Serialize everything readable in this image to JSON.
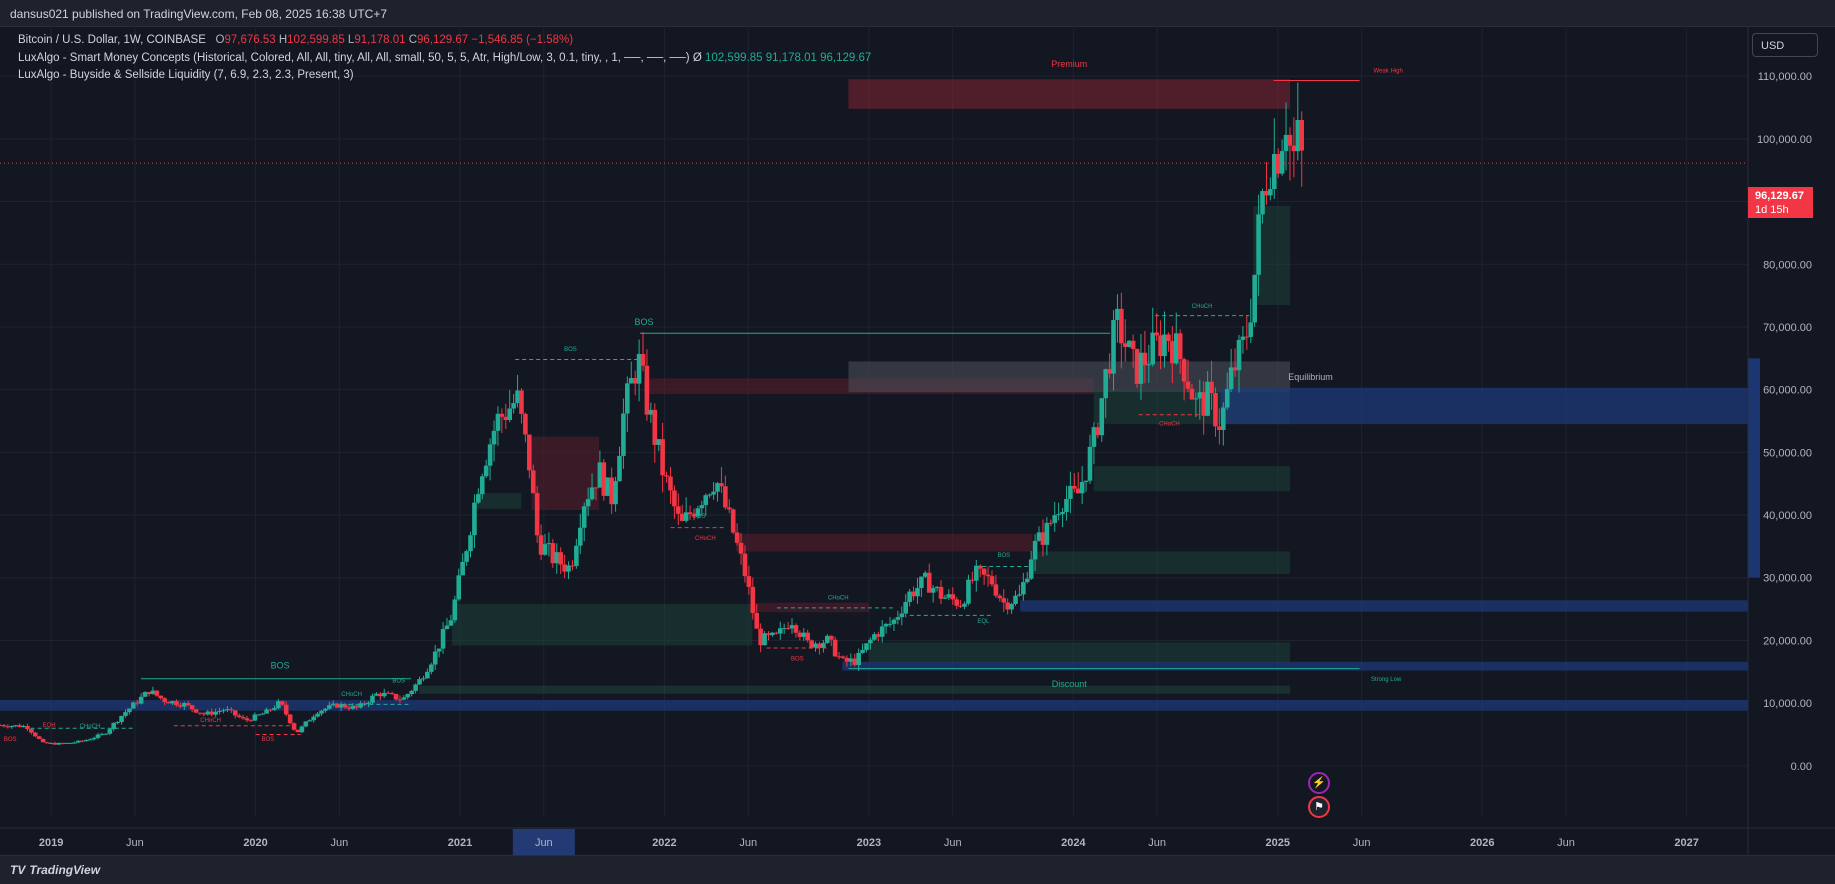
{
  "header": {
    "published_text": "dansus021 published on TradingView.com, Feb 08, 2025 16:38 UTC+7"
  },
  "legend": {
    "symbol": "Bitcoin / U.S. Dollar, 1W, COINBASE",
    "o_label": "O",
    "o_value": "97,676.53",
    "h_label": "H",
    "h_value": "102,599.85",
    "l_label": "L",
    "l_value": "91,178.01",
    "c_label": "C",
    "c_value": "96,129.67",
    "change": "−1,546.85 (−1.58%)",
    "indicator1": "LuxAlgo - Smart Money Concepts (Historical, Colored, All, All, tiny, All, All, small, 50, 5, 5, Atr, High/Low, 3, 0.1, tiny, , 1, ──, ──, ──)",
    "indicator1_symbol": "Ø",
    "indicator1_values": [
      "102,599.85",
      "91,178.01",
      "96,129.67"
    ],
    "indicator2": "LuxAlgo - Buyside & Sellside Liquidity (7, 6.9, 2.3, 2.3, Present, 3)"
  },
  "currency_button": "USD",
  "price_tag": {
    "price": "96,129.67",
    "countdown": "1d 15h"
  },
  "footer": {
    "brand": "TradingView",
    "logo": "tv-logo-icon"
  },
  "icons": {
    "flash": "lightning-icon",
    "flag": "us-flag-icon"
  },
  "colors": {
    "background": "#131722",
    "bull": "#22ab94",
    "bear": "#f23645",
    "premium_zone": "#5b1e2a",
    "discount_zone": "#1f4a3c",
    "equilibrium_zone": "#3a3d47",
    "liquidity_zone": "#1e3a7a"
  },
  "chart_data": {
    "type": "candlestick",
    "symbol": "BTCUSD",
    "interval": "1W",
    "ylim": [
      -8000,
      118000
    ],
    "xlim": [
      2018.75,
      2027.3
    ],
    "y_ticks": [
      {
        "v": 0,
        "label": "0.00"
      },
      {
        "v": 10000,
        "label": "10,000.00"
      },
      {
        "v": 20000,
        "label": "20,000.00"
      },
      {
        "v": 30000,
        "label": "30,000.00"
      },
      {
        "v": 40000,
        "label": "40,000.00"
      },
      {
        "v": 50000,
        "label": "50,000.00"
      },
      {
        "v": 60000,
        "label": "60,000.00"
      },
      {
        "v": 70000,
        "label": "70,000.00"
      },
      {
        "v": 80000,
        "label": "80,000.00"
      },
      {
        "v": 90000,
        "label": "90,000.00"
      },
      {
        "v": 100000,
        "label": "100,000.00"
      },
      {
        "v": 110000,
        "label": "110,000.00"
      }
    ],
    "x_ticks": [
      {
        "t": 2019.0,
        "label": "2019",
        "bold": true
      },
      {
        "t": 2019.41,
        "label": "Jun"
      },
      {
        "t": 2020.0,
        "label": "2020",
        "bold": true
      },
      {
        "t": 2020.41,
        "label": "Jun"
      },
      {
        "t": 2021.0,
        "label": "2021",
        "bold": true
      },
      {
        "t": 2021.41,
        "label": "Jun",
        "highlight": true
      },
      {
        "t": 2022.0,
        "label": "2022",
        "bold": true
      },
      {
        "t": 2022.41,
        "label": "Jun"
      },
      {
        "t": 2023.0,
        "label": "2023",
        "bold": true
      },
      {
        "t": 2023.41,
        "label": "Jun"
      },
      {
        "t": 2024.0,
        "label": "2024",
        "bold": true
      },
      {
        "t": 2024.41,
        "label": "Jun"
      },
      {
        "t": 2025.0,
        "label": "2025",
        "bold": true
      },
      {
        "t": 2025.41,
        "label": "Jun"
      },
      {
        "t": 2026.0,
        "label": "2026",
        "bold": true
      },
      {
        "t": 2026.41,
        "label": "Jun"
      },
      {
        "t": 2027.0,
        "label": "2027",
        "bold": true
      }
    ],
    "current_price": 96129.67,
    "price_path": [
      [
        2018.75,
        6500
      ],
      [
        2018.88,
        6300
      ],
      [
        2018.96,
        3600
      ],
      [
        2019.05,
        3500
      ],
      [
        2019.15,
        3900
      ],
      [
        2019.26,
        5100
      ],
      [
        2019.35,
        8200
      ],
      [
        2019.48,
        12000
      ],
      [
        2019.55,
        10500
      ],
      [
        2019.65,
        9800
      ],
      [
        2019.75,
        8200
      ],
      [
        2019.85,
        9000
      ],
      [
        2019.95,
        7200
      ],
      [
        2020.05,
        8500
      ],
      [
        2020.12,
        10100
      ],
      [
        2020.2,
        5200
      ],
      [
        2020.3,
        8700
      ],
      [
        2020.4,
        9700
      ],
      [
        2020.5,
        9200
      ],
      [
        2020.6,
        11600
      ],
      [
        2020.72,
        10600
      ],
      [
        2020.8,
        13500
      ],
      [
        2020.88,
        18000
      ],
      [
        2020.96,
        24000
      ],
      [
        2021.02,
        33000
      ],
      [
        2021.1,
        47000
      ],
      [
        2021.18,
        55000
      ],
      [
        2021.28,
        58500
      ],
      [
        2021.34,
        48000
      ],
      [
        2021.38,
        36000
      ],
      [
        2021.46,
        33000
      ],
      [
        2021.54,
        31500
      ],
      [
        2021.6,
        42000
      ],
      [
        2021.68,
        47000
      ],
      [
        2021.74,
        42500
      ],
      [
        2021.8,
        56000
      ],
      [
        2021.87,
        65000
      ],
      [
        2021.92,
        57000
      ],
      [
        2022.0,
        46000
      ],
      [
        2022.08,
        38000
      ],
      [
        2022.16,
        42000
      ],
      [
        2022.25,
        46000
      ],
      [
        2022.33,
        38000
      ],
      [
        2022.4,
        30000
      ],
      [
        2022.46,
        20000
      ],
      [
        2022.55,
        20500
      ],
      [
        2022.62,
        23500
      ],
      [
        2022.7,
        19500
      ],
      [
        2022.8,
        20000
      ],
      [
        2022.87,
        16500
      ],
      [
        2022.94,
        16800
      ],
      [
        2023.03,
        21000
      ],
      [
        2023.12,
        23000
      ],
      [
        2023.2,
        27500
      ],
      [
        2023.28,
        29500
      ],
      [
        2023.36,
        27000
      ],
      [
        2023.45,
        26000
      ],
      [
        2023.52,
        30500
      ],
      [
        2023.6,
        29500
      ],
      [
        2023.66,
        26000
      ],
      [
        2023.74,
        27000
      ],
      [
        2023.8,
        34500
      ],
      [
        2023.87,
        37500
      ],
      [
        2023.94,
        42500
      ],
      [
        2024.02,
        43000
      ],
      [
        2024.1,
        51500
      ],
      [
        2024.18,
        66000
      ],
      [
        2024.22,
        70500
      ],
      [
        2024.3,
        63000
      ],
      [
        2024.38,
        66000
      ],
      [
        2024.46,
        69000
      ],
      [
        2024.54,
        64000
      ],
      [
        2024.6,
        57500
      ],
      [
        2024.66,
        58500
      ],
      [
        2024.72,
        54500
      ],
      [
        2024.78,
        63000
      ],
      [
        2024.84,
        67500
      ],
      [
        2024.88,
        76000
      ],
      [
        2024.92,
        90000
      ],
      [
        2024.96,
        96500
      ],
      [
        2025.0,
        98000
      ],
      [
        2025.04,
        104000
      ],
      [
        2025.07,
        96000
      ],
      [
        2025.1,
        100000
      ],
      [
        2025.12,
        96129.67
      ]
    ],
    "zones": [
      {
        "kind": "premium",
        "t0": 2022.9,
        "t1": 2025.06,
        "y0": 104800,
        "y1": 109500
      },
      {
        "kind": "bear_ob",
        "t0": 2021.35,
        "t1": 2021.68,
        "y0": 40800,
        "y1": 52500
      },
      {
        "kind": "bear_ob",
        "t0": 2021.9,
        "t1": 2024.1,
        "y0": 59300,
        "y1": 61800
      },
      {
        "kind": "bear_ob",
        "t0": 2022.35,
        "t1": 2023.8,
        "y0": 34200,
        "y1": 37000
      },
      {
        "kind": "bear_ob",
        "t0": 2022.43,
        "t1": 2023.0,
        "y0": 24500,
        "y1": 26000
      },
      {
        "kind": "equilibrium",
        "t0": 2022.9,
        "t1": 2025.06,
        "y0": 59600,
        "y1": 64500
      },
      {
        "kind": "bull_ob",
        "t0": 2024.1,
        "t1": 2025.06,
        "y0": 54500,
        "y1": 60000
      },
      {
        "kind": "bull_ob",
        "t0": 2024.1,
        "t1": 2025.06,
        "y0": 43800,
        "y1": 47800
      },
      {
        "kind": "bull_ob",
        "t0": 2023.8,
        "t1": 2025.06,
        "y0": 30600,
        "y1": 34200
      },
      {
        "kind": "bull_ob",
        "t0": 2020.96,
        "t1": 2022.43,
        "y0": 19200,
        "y1": 25800
      },
      {
        "kind": "bull_ob",
        "t0": 2023.0,
        "t1": 2025.06,
        "y0": 16500,
        "y1": 19700
      },
      {
        "kind": "bull_ob",
        "t0": 2024.88,
        "t1": 2025.06,
        "y0": 73500,
        "y1": 89300
      },
      {
        "kind": "bull_ob",
        "t0": 2021.08,
        "t1": 2021.3,
        "y0": 41000,
        "y1": 43500
      },
      {
        "kind": "discount",
        "t0": 2020.8,
        "t1": 2025.06,
        "y0": 11500,
        "y1": 12800
      },
      {
        "kind": "liq",
        "t0": 2024.72,
        "t1": 2027.3,
        "y0": 54500,
        "y1": 60300
      },
      {
        "kind": "liq",
        "t0": 2023.74,
        "t1": 2027.3,
        "y0": 24600,
        "y1": 26400
      },
      {
        "kind": "liq",
        "t0": 2022.87,
        "t1": 2027.3,
        "y0": 15200,
        "y1": 16600
      },
      {
        "kind": "liq",
        "t0": 2018.75,
        "t1": 2027.3,
        "y0": 8800,
        "y1": 10500
      },
      {
        "kind": "liq_strong",
        "t0": 2027.3,
        "t1": 2027.6,
        "y0": 30000,
        "y1": 65000
      }
    ],
    "structure_lines": [
      {
        "t0": 2019.44,
        "t1": 2020.76,
        "y": 13900,
        "color": "bull",
        "dashed": false,
        "label": "BOS"
      },
      {
        "t0": 2021.27,
        "t1": 2021.87,
        "y": 64800,
        "color": "bull",
        "dashed": true,
        "label": "BOS"
      },
      {
        "t0": 2021.88,
        "t1": 2024.18,
        "y": 69000,
        "color": "bull",
        "dashed": false,
        "label": "BOS"
      },
      {
        "t0": 2024.4,
        "t1": 2024.86,
        "y": 71800,
        "color": "bull",
        "dashed": true,
        "label": "CHoCH"
      },
      {
        "t0": 2023.52,
        "t1": 2023.8,
        "y": 31800,
        "color": "bull",
        "dashed": true,
        "label": "BOS"
      },
      {
        "t0": 2022.55,
        "t1": 2023.12,
        "y": 25200,
        "color": "bull",
        "dashed": true,
        "label": "CHoCH"
      },
      {
        "t0": 2022.03,
        "t1": 2022.3,
        "y": 38000,
        "color": "bear",
        "dashed": true,
        "label": "CHoCH"
      },
      {
        "t0": 2024.32,
        "t1": 2024.62,
        "y": 56000,
        "color": "bear",
        "dashed": true,
        "label": "CHoCH"
      },
      {
        "t0": 2022.5,
        "t1": 2022.8,
        "y": 18800,
        "color": "bear",
        "dashed": true,
        "label": "BOS"
      },
      {
        "t0": 2019.6,
        "t1": 2020.2,
        "y": 6400,
        "color": "bear",
        "dashed": true,
        "label": "CHoCH"
      },
      {
        "t0": 2020.0,
        "t1": 2020.22,
        "y": 5000,
        "color": "bear",
        "dashed": true,
        "label": "BOS"
      },
      {
        "t0": 2020.42,
        "t1": 2020.75,
        "y": 9800,
        "color": "bull",
        "dashed": true,
        "label": "CHoCH"
      },
      {
        "t0": 2018.9,
        "t1": 2019.4,
        "y": 6000,
        "color": "bull",
        "dashed": true,
        "label": "CHoCH"
      },
      {
        "t0": 2024.98,
        "t1": 2025.4,
        "y": 109300,
        "color": "bear",
        "dashed": false,
        "label": "Weak High"
      },
      {
        "t0": 2022.9,
        "t1": 2025.4,
        "y": 15500,
        "color": "bull",
        "dashed": false,
        "label": "Strong Low"
      },
      {
        "t0": 2023.2,
        "t1": 2023.6,
        "y": 24000,
        "color": "bull",
        "dashed": true,
        "label": "EQL"
      }
    ],
    "text_labels": [
      {
        "t": 2023.98,
        "y": 111500,
        "text": "Premium",
        "color": "bear",
        "size": 9
      },
      {
        "t": 2025.16,
        "y": 61500,
        "text": "Equilibrium",
        "color": "gray",
        "size": 9
      },
      {
        "t": 2023.98,
        "y": 12600,
        "text": "Discount",
        "color": "bull",
        "size": 9
      },
      {
        "t": 2025.54,
        "y": 110600,
        "text": "Weak High",
        "color": "bear",
        "size": 6
      },
      {
        "t": 2025.53,
        "y": 13500,
        "text": "Strong Low",
        "color": "bull",
        "size": 6
      },
      {
        "t": 2021.9,
        "y": 70300,
        "text": "BOS",
        "color": "bull",
        "size": 9
      },
      {
        "t": 2020.12,
        "y": 15500,
        "text": "BOS",
        "color": "bull",
        "size": 9
      },
      {
        "t": 2021.54,
        "y": 66200,
        "text": "BOS",
        "color": "bull",
        "size": 6
      },
      {
        "t": 2024.63,
        "y": 73000,
        "text": "CHoCH",
        "color": "bull",
        "size": 6
      },
      {
        "t": 2023.66,
        "y": 33300,
        "text": "BOS",
        "color": "bull",
        "size": 6
      },
      {
        "t": 2022.85,
        "y": 26500,
        "text": "CHoCH",
        "color": "bull",
        "size": 6
      },
      {
        "t": 2022.17,
        "y": 39500,
        "text": "BOS",
        "color": "bull",
        "size": 6
      },
      {
        "t": 2022.2,
        "y": 36000,
        "text": "CHoCH",
        "color": "bear",
        "size": 6
      },
      {
        "t": 2024.47,
        "y": 54300,
        "text": "CHoCH",
        "color": "bear",
        "size": 6
      },
      {
        "t": 2022.65,
        "y": 16800,
        "text": "BOS",
        "color": "bear",
        "size": 6
      },
      {
        "t": 2023.56,
        "y": 22800,
        "text": "EQL",
        "color": "bull",
        "size": 6
      },
      {
        "t": 2019.78,
        "y": 7000,
        "text": "CHoCH",
        "color": "bear",
        "size": 6
      },
      {
        "t": 2020.06,
        "y": 4000,
        "text": "BOS",
        "color": "bear",
        "size": 6
      },
      {
        "t": 2020.47,
        "y": 11100,
        "text": "CHoCH",
        "color": "bull",
        "size": 6
      },
      {
        "t": 2020.7,
        "y": 13300,
        "text": "BOS",
        "color": "bull",
        "size": 6
      },
      {
        "t": 2019.19,
        "y": 6000,
        "text": "CHoCH",
        "color": "bull",
        "size": 6
      },
      {
        "t": 2018.99,
        "y": 6200,
        "text": "EQH",
        "color": "bear",
        "size": 6
      },
      {
        "t": 2018.8,
        "y": 4000,
        "text": "BOS",
        "color": "bear",
        "size": 6
      }
    ]
  }
}
